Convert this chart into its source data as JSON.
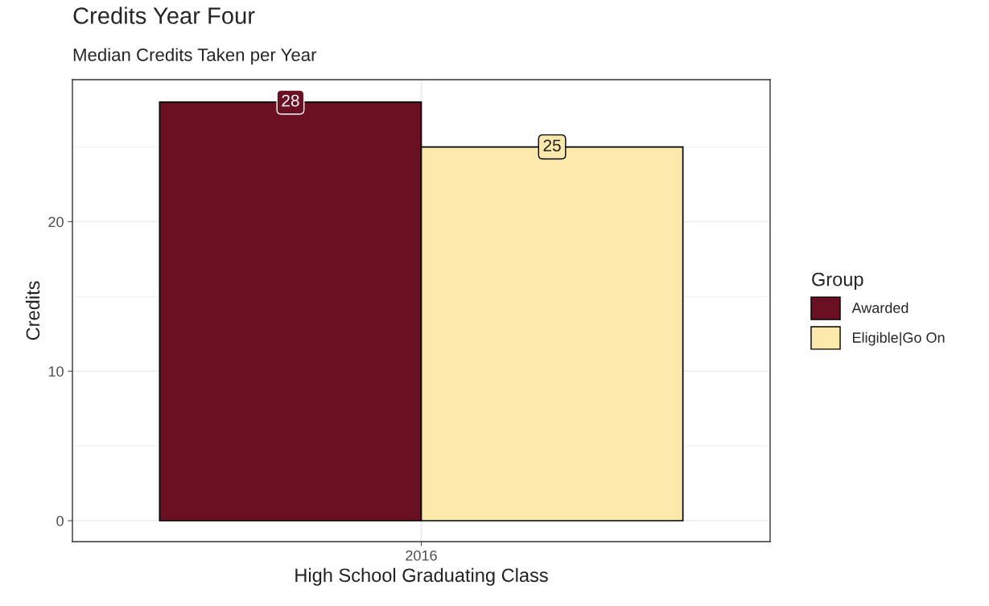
{
  "chart_data": {
    "type": "bar",
    "title": "Credits Year Four",
    "subtitle": "Median Credits Taken per Year",
    "xlabel": "High School Graduating Class",
    "ylabel": "Credits",
    "legend_title": "Group",
    "categories": [
      "2016"
    ],
    "series": [
      {
        "name": "Awarded",
        "color": "#6b0f22",
        "values": [
          28
        ]
      },
      {
        "name": "Eligible|Go On",
        "color": "#fde8ab",
        "values": [
          25
        ]
      }
    ],
    "ylim": [
      -1.4,
      29.5
    ],
    "yticks": [
      0,
      10,
      20
    ],
    "grid": true,
    "legend": "right",
    "data_labels": true
  }
}
